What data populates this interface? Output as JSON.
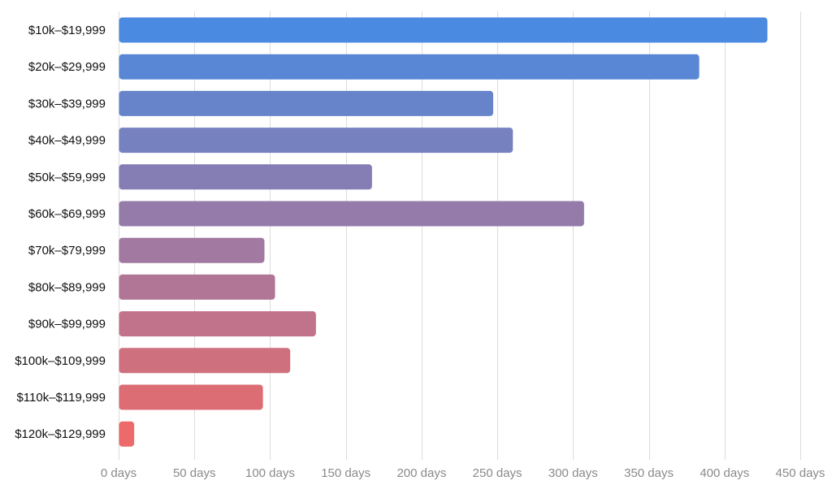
{
  "chart_data": {
    "type": "bar",
    "orientation": "horizontal",
    "title": "",
    "xlabel": "",
    "ylabel": "",
    "xlim": [
      0,
      450
    ],
    "tick_values": [
      0,
      50,
      100,
      150,
      200,
      250,
      300,
      350,
      400,
      450
    ],
    "tick_labels": [
      "0 days",
      "50 days",
      "100 days",
      "150 days",
      "200 days",
      "250 days",
      "300 days",
      "350 days",
      "400 days",
      "450 days"
    ],
    "grid": true,
    "legend": "none",
    "categories": [
      "$10k–$19,999",
      "$20k–$29,999",
      "$30k–$39,999",
      "$40k–$49,999",
      "$50k–$59,999",
      "$60k–$69,999",
      "$70k–$79,999",
      "$80k–$89,999",
      "$90k–$99,999",
      "$100k–$109,999",
      "$110k–$119,999",
      "$120k–$129,999"
    ],
    "values": [
      428,
      383,
      247,
      260,
      167,
      307,
      96,
      103,
      130,
      113,
      95,
      10
    ],
    "colors": {
      "gradient_start": "#4a8ae0",
      "gradient_end": "#ec6a6a"
    }
  }
}
